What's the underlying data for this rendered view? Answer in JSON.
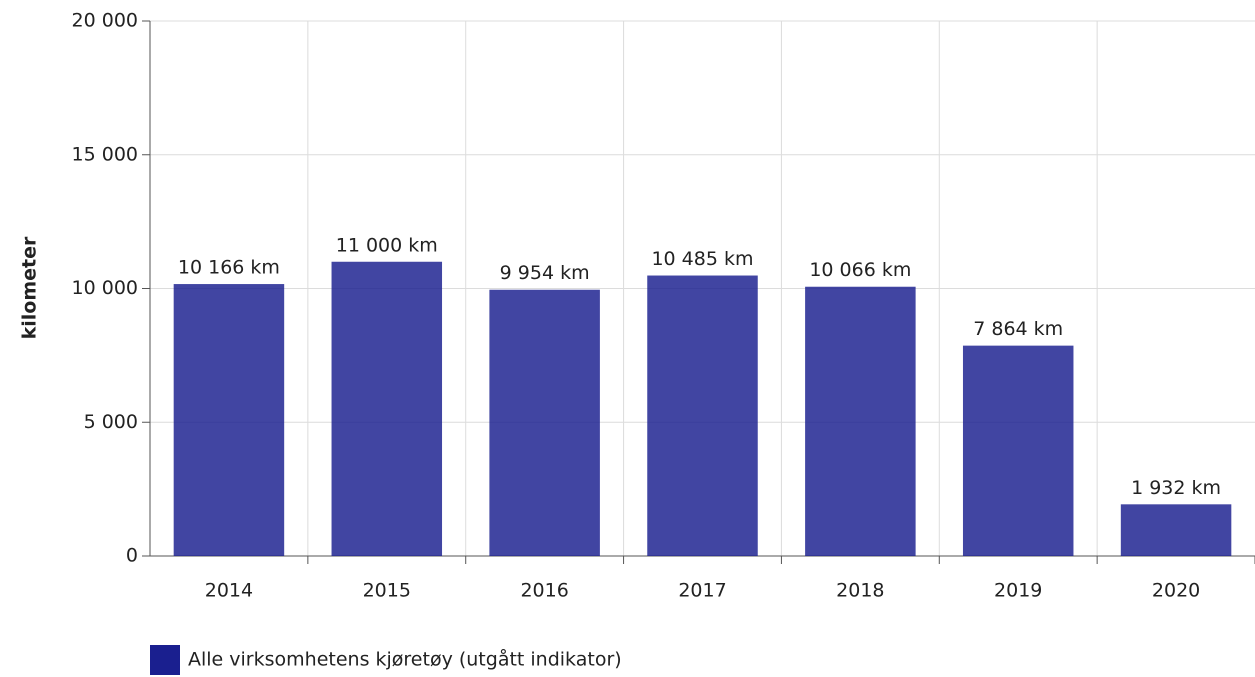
{
  "chart_data": {
    "type": "bar",
    "y_label": "kilometer",
    "categories": [
      "2014",
      "2015",
      "2016",
      "2017",
      "2018",
      "2019",
      "2020"
    ],
    "series": [
      {
        "name": "Alle virksomhetens kjøretøy (utgått indikator)",
        "color": "#1a1f8f",
        "values": [
          10166,
          11000,
          9954,
          10485,
          10066,
          7864,
          1932
        ],
        "value_labels": [
          "10 166 km",
          "11 000 km",
          "9 954 km",
          "10 485 km",
          "10 066 km",
          "7 864 km",
          "1 932 km"
        ]
      }
    ],
    "ylim": [
      0,
      20000
    ],
    "yticks": [
      0,
      {
        "value": 5000,
        "label": "5 000"
      },
      {
        "value": 10000,
        "label": "10 000"
      },
      {
        "value": 15000,
        "label": "15 000"
      },
      {
        "value": 20000,
        "label": "20 000"
      }
    ],
    "grid": true
  }
}
